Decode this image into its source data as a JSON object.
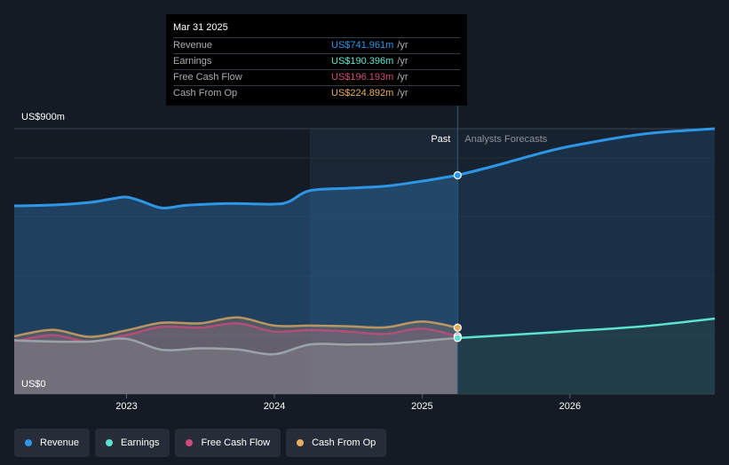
{
  "chart_data": {
    "type": "area",
    "title": "",
    "ylabel_top": "US$900m",
    "ylabel_bottom": "US$0",
    "ylim": [
      0,
      900
    ],
    "xlim": [
      2022.24,
      2026.98
    ],
    "x_ticks": [
      2023,
      2024,
      2025,
      2026
    ],
    "x_tick_labels": [
      "2023",
      "2024",
      "2025",
      "2026"
    ],
    "highlight_start": 2024.24,
    "divider_x": 2025.24,
    "past_label": "Past",
    "forecast_label": "Analysts Forecasts",
    "series": [
      {
        "name": "Revenue",
        "color": "#2d96e6",
        "past": [
          [
            2022.24,
            638
          ],
          [
            2022.5,
            641
          ],
          [
            2022.75,
            650
          ],
          [
            2022.9,
            662
          ],
          [
            2023.0,
            668
          ],
          [
            2023.1,
            654
          ],
          [
            2023.24,
            631
          ],
          [
            2023.4,
            640
          ],
          [
            2023.6,
            645
          ],
          [
            2023.75,
            646
          ],
          [
            2024.0,
            644
          ],
          [
            2024.1,
            653
          ],
          [
            2024.24,
            690
          ],
          [
            2024.5,
            698
          ],
          [
            2024.75,
            705
          ],
          [
            2025.0,
            722
          ],
          [
            2025.24,
            742
          ]
        ],
        "forecast": [
          [
            2025.24,
            742
          ],
          [
            2025.5,
            775
          ],
          [
            2025.75,
            810
          ],
          [
            2026.0,
            840
          ],
          [
            2026.5,
            882
          ],
          [
            2026.98,
            900
          ]
        ]
      },
      {
        "name": "Earnings",
        "color": "#5ce3cf",
        "past": [
          [
            2022.24,
            182
          ],
          [
            2022.5,
            178
          ],
          [
            2022.75,
            178
          ],
          [
            2023.0,
            187
          ],
          [
            2023.24,
            150
          ],
          [
            2023.5,
            155
          ],
          [
            2023.75,
            151
          ],
          [
            2024.0,
            135
          ],
          [
            2024.24,
            168
          ],
          [
            2024.5,
            168
          ],
          [
            2024.75,
            170
          ],
          [
            2025.0,
            180
          ],
          [
            2025.24,
            190
          ]
        ],
        "forecast": [
          [
            2025.24,
            190
          ],
          [
            2025.75,
            205
          ],
          [
            2026.0,
            213
          ],
          [
            2026.5,
            230
          ],
          [
            2026.98,
            256
          ]
        ]
      },
      {
        "name": "Free Cash Flow",
        "color": "#cf4a7d",
        "past": [
          [
            2022.24,
            178
          ],
          [
            2022.5,
            200
          ],
          [
            2022.75,
            178
          ],
          [
            2023.0,
            200
          ],
          [
            2023.24,
            228
          ],
          [
            2023.5,
            225
          ],
          [
            2023.75,
            240
          ],
          [
            2024.0,
            212
          ],
          [
            2024.24,
            217
          ],
          [
            2024.5,
            212
          ],
          [
            2024.75,
            204
          ],
          [
            2025.0,
            222
          ],
          [
            2025.24,
            196
          ]
        ]
      },
      {
        "name": "Cash From Op",
        "color": "#e8ac61",
        "past": [
          [
            2022.24,
            196
          ],
          [
            2022.5,
            218
          ],
          [
            2022.75,
            194
          ],
          [
            2023.0,
            216
          ],
          [
            2023.24,
            242
          ],
          [
            2023.5,
            240
          ],
          [
            2023.75,
            260
          ],
          [
            2024.0,
            232
          ],
          [
            2024.24,
            232
          ],
          [
            2024.5,
            230
          ],
          [
            2024.75,
            226
          ],
          [
            2025.0,
            246
          ],
          [
            2025.24,
            225
          ]
        ]
      }
    ]
  },
  "tooltip": {
    "date": "Mar 31 2025",
    "unit": "/yr",
    "rows": [
      {
        "label": "Revenue",
        "value": "US$741.961m",
        "color": "#2d96e6"
      },
      {
        "label": "Earnings",
        "value": "US$190.396m",
        "color": "#5ce3cf"
      },
      {
        "label": "Free Cash Flow",
        "value": "US$196.193m",
        "color": "#cf4a7d"
      },
      {
        "label": "Cash From Op",
        "value": "US$224.892m",
        "color": "#e8ac61"
      }
    ]
  },
  "legend": [
    {
      "label": "Revenue",
      "color": "#2d96e6"
    },
    {
      "label": "Earnings",
      "color": "#5ce3cf"
    },
    {
      "label": "Free Cash Flow",
      "color": "#cf4a7d"
    },
    {
      "label": "Cash From Op",
      "color": "#e8ac61"
    }
  ]
}
